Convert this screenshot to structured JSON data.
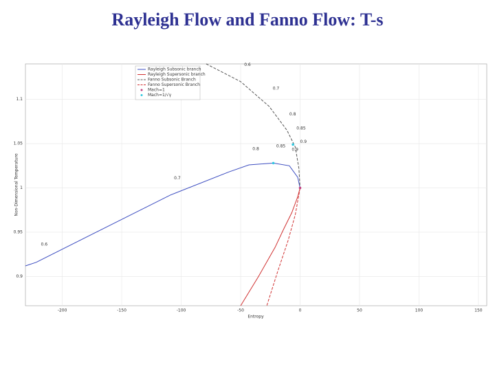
{
  "chart_data": {
    "type": "line",
    "title": "Rayleigh Flow and Fanno Flow: T-s",
    "x_label": "Entropy",
    "y_label": "Non-Dimensional Temperature",
    "xlim": [
      -231,
      157
    ],
    "ylim": [
      0.867,
      1.14
    ],
    "xticks": [
      -200,
      -150,
      -100,
      -50,
      0,
      50,
      100,
      150
    ],
    "yticks": [
      0.9,
      0.95,
      1,
      1.05,
      1.1
    ],
    "grid": true,
    "legend": "upper-left",
    "series": [
      {
        "name": "Rayleigh Subsonic branch",
        "color": "#3b4cc0",
        "style": "solid",
        "x": [
          -231,
          -222,
          -109,
          -60,
          -43,
          -22.5,
          -9,
          -2,
          0
        ],
        "y": [
          0.912,
          0.916,
          0.992,
          1.018,
          1.026,
          1.028,
          1.025,
          1.012,
          1
        ]
      },
      {
        "name": "Rayleigh Supersonic branch",
        "color": "#d03030",
        "style": "solid",
        "x": [
          0,
          -2,
          -7,
          -14,
          -21,
          -35,
          -50
        ],
        "y": [
          1,
          0.99,
          0.972,
          0.953,
          0.933,
          0.9,
          0.867
        ]
      },
      {
        "name": "Fanno Subsonic Branch",
        "color": "#555555",
        "style": "dashed",
        "x": [
          -79,
          -50,
          -26,
          -11,
          -4,
          -1,
          0
        ],
        "y": [
          1.14,
          1.12,
          1.092,
          1.065,
          1.046,
          1.022,
          1
        ]
      },
      {
        "name": "Fanno Supersonic Branch",
        "color": "#d03030",
        "style": "dashed",
        "x": [
          0,
          -4,
          -10,
          -19,
          -28
        ],
        "y": [
          1,
          0.97,
          0.941,
          0.905,
          0.867
        ]
      },
      {
        "name": "Mach=1",
        "color": "#c04080",
        "style": "points",
        "x": [
          0
        ],
        "y": [
          1
        ]
      },
      {
        "name": "Mach=1/√γ",
        "color": "#30c8e0",
        "style": "points",
        "x": [
          -22.5,
          -6
        ],
        "y": [
          1.028,
          1.049
        ]
      }
    ],
    "annotations": [
      {
        "text": "0.6",
        "x": -47,
        "y": 1.139,
        "color": "#333333"
      },
      {
        "text": "0.7",
        "x": -23,
        "y": 1.112,
        "color": "#333333"
      },
      {
        "text": "0.8",
        "x": -9,
        "y": 1.083,
        "color": "#333333"
      },
      {
        "text": "0.85",
        "x": -3,
        "y": 1.067,
        "color": "#30c8e0"
      },
      {
        "text": "0.9",
        "x": 0,
        "y": 1.052,
        "color": "#333333"
      },
      {
        "text": "0.8",
        "x": -40,
        "y": 1.044,
        "color": "#333333"
      },
      {
        "text": "0.85",
        "x": -20,
        "y": 1.047,
        "color": "#30c8e0"
      },
      {
        "text": "0.9",
        "x": -7,
        "y": 1.043,
        "color": "#333333"
      },
      {
        "text": "0.7",
        "x": -106,
        "y": 1.011,
        "color": "#333333"
      },
      {
        "text": "0.6",
        "x": -218,
        "y": 0.936,
        "color": "#333333"
      }
    ]
  }
}
